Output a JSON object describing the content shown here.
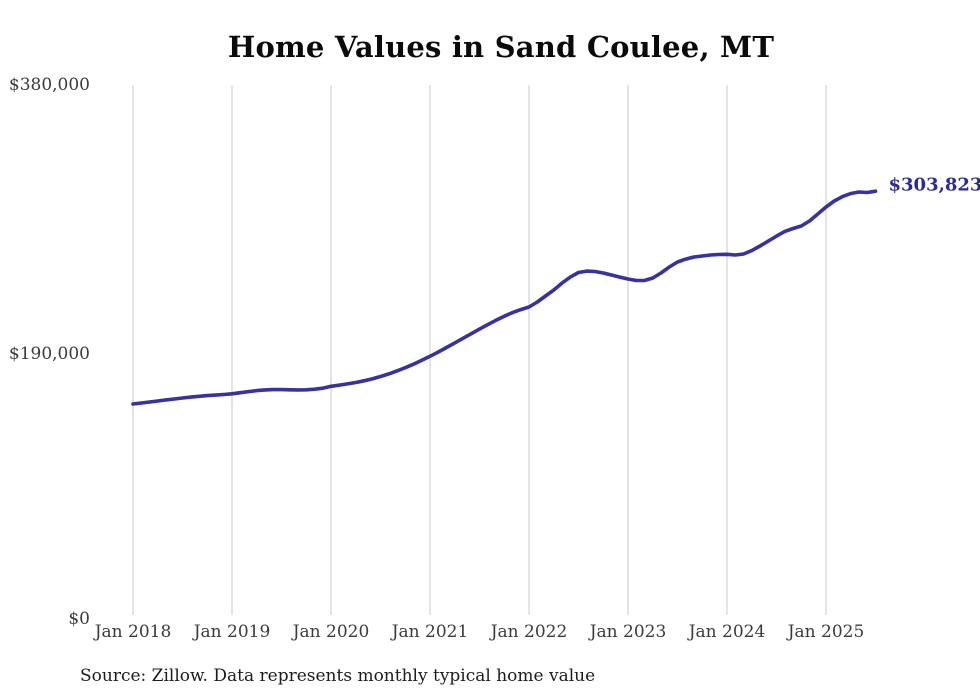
{
  "title": "Home Values in Sand Coulee, MT",
  "source_note": "Source: Zillow. Data represents monthly typical home value",
  "end_label": "$303,823",
  "colors": {
    "line": "#3632a0",
    "end_label": "#2d2a93",
    "grid": "#c9c9c9",
    "axis_text": "#3b3b3b",
    "title_text": "#0a0a0a",
    "background": "#ffffff"
  },
  "chart_data": {
    "type": "line",
    "title": "Home Values in Sand Coulee, MT",
    "xlabel": "",
    "ylabel": "",
    "x_start": "2018-01",
    "x_interval": "month",
    "x_tick_labels": [
      "Jan 2018",
      "Jan 2019",
      "Jan 2020",
      "Jan 2021",
      "Jan 2022",
      "Jan 2023",
      "Jan 2024",
      "Jan 2025"
    ],
    "y_ticks": [
      0,
      190000,
      380000
    ],
    "y_tick_labels": [
      "$0",
      "$190,000",
      "$380,000"
    ],
    "ylim": [
      0,
      380000
    ],
    "grid": "vertical-only",
    "legend": "none",
    "end_annotation": 303823,
    "series": [
      {
        "name": "Monthly typical home value",
        "values": [
          151300,
          152000,
          152700,
          153400,
          154200,
          154900,
          155600,
          156200,
          156800,
          157300,
          157700,
          158100,
          158600,
          159400,
          160200,
          160900,
          161400,
          161600,
          161600,
          161500,
          161400,
          161500,
          161900,
          162600,
          164000,
          164800,
          165700,
          166700,
          167900,
          169300,
          171000,
          172900,
          175000,
          177300,
          179800,
          182600,
          185500,
          188600,
          191800,
          195100,
          198400,
          201700,
          205000,
          208200,
          211300,
          214200,
          216800,
          219000,
          220800,
          224400,
          228700,
          233000,
          238000,
          242300,
          245600,
          246600,
          246300,
          245200,
          243800,
          242300,
          240900,
          239800,
          239800,
          241600,
          245200,
          249500,
          253100,
          255200,
          256700,
          257400,
          258100,
          258500,
          258600,
          258100,
          258800,
          261300,
          264600,
          268100,
          271700,
          275000,
          277100,
          278900,
          282500,
          287500,
          292500,
          296800,
          300000,
          302200,
          303300,
          302900,
          303823
        ]
      }
    ]
  }
}
